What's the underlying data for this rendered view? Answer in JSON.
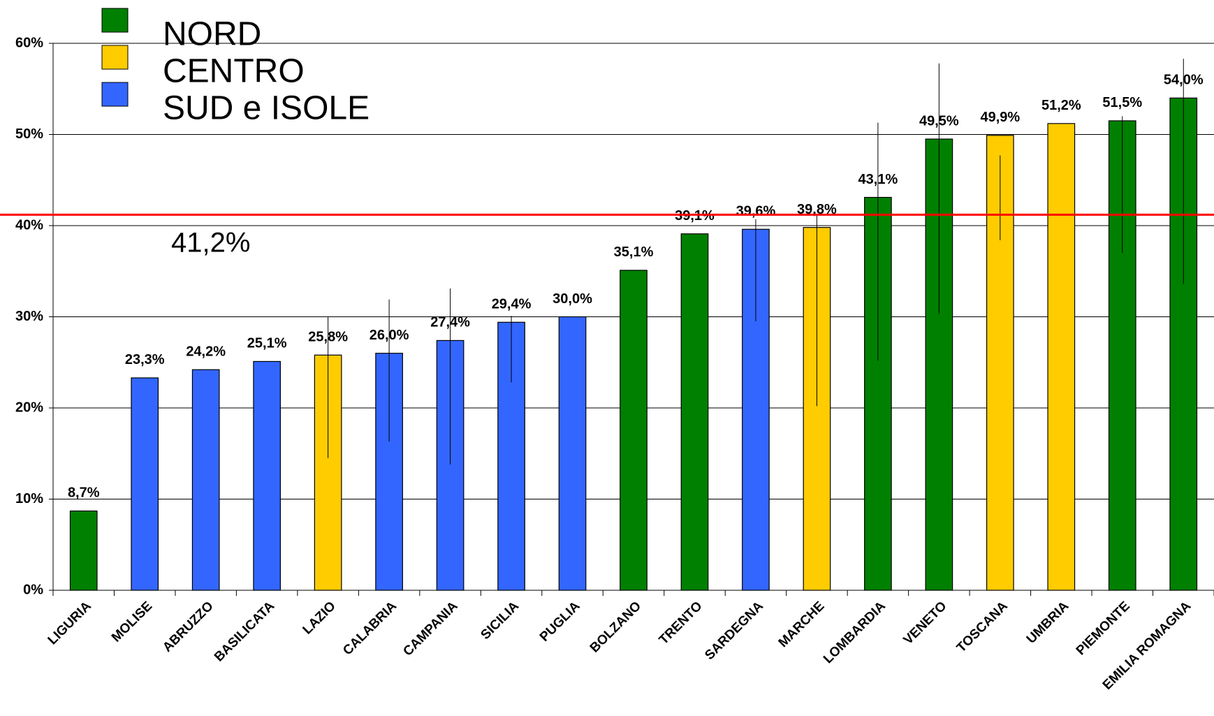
{
  "chart_data": {
    "type": "bar",
    "categories": [
      "LIGURIA",
      "MOLISE",
      "ABRUZZO",
      "BASILICATA",
      "LAZIO",
      "CALABRIA",
      "CAMPANIA",
      "SICILIA",
      "PUGLIA",
      "BOLZANO",
      "TRENTO",
      "SARDEGNA",
      "MARCHE",
      "LOMBARDIA",
      "VENETO",
      "TOSCANA",
      "UMBRIA",
      "PIEMONTE",
      "EMILIA ROMAGNA"
    ],
    "values": [
      8.7,
      23.3,
      24.2,
      25.1,
      25.8,
      26.0,
      27.4,
      29.4,
      30.0,
      35.1,
      39.1,
      39.6,
      39.8,
      43.1,
      49.5,
      49.9,
      51.2,
      51.5,
      54.0
    ],
    "value_labels": [
      "8,7%",
      "23,3%",
      "24,2%",
      "25,1%",
      "25,8%",
      "26,0%",
      "27,4%",
      "29,4%",
      "30,0%",
      "35,1%",
      "39,1%",
      "39,6%",
      "39,8%",
      "43,1%",
      "49,5%",
      "49,9%",
      "51,2%",
      "51,5%",
      "54,0%"
    ],
    "error_low": [
      null,
      null,
      null,
      null,
      14.5,
      16.3,
      13.8,
      22.8,
      null,
      null,
      null,
      29.5,
      20.2,
      25.2,
      30.3,
      38.4,
      null,
      37.0,
      33.6
    ],
    "error_high": [
      null,
      null,
      null,
      null,
      30.0,
      31.9,
      33.1,
      30.1,
      null,
      null,
      null,
      40.7,
      41.1,
      51.3,
      57.8,
      47.7,
      null,
      52.0,
      58.3
    ],
    "bar_groups": [
      0,
      2,
      2,
      2,
      1,
      2,
      2,
      2,
      2,
      0,
      0,
      2,
      1,
      0,
      0,
      1,
      1,
      0,
      0
    ],
    "legend": [
      {
        "name": "NORD",
        "color": "#008000"
      },
      {
        "name": "CENTRO",
        "color": "#ffcc00"
      },
      {
        "name": "SUD e ISOLE",
        "color": "#3366ff"
      }
    ],
    "reference_line": {
      "value": 41.2,
      "label": "41,2%",
      "color": "#ff0000"
    },
    "ylim": [
      0,
      60
    ],
    "yticks": [
      {
        "value": 0,
        "label": "0%"
      },
      {
        "value": 10,
        "label": "10%"
      },
      {
        "value": 20,
        "label": "20%"
      },
      {
        "value": 30,
        "label": "30%"
      },
      {
        "value": 40,
        "label": "40%"
      },
      {
        "value": 50,
        "label": "50%"
      },
      {
        "value": 60,
        "label": "60%"
      }
    ],
    "grid": true
  }
}
